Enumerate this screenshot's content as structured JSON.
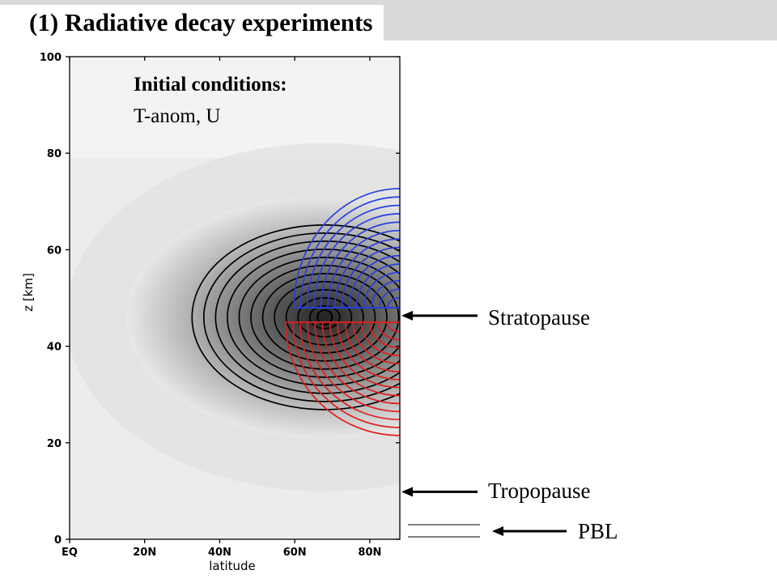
{
  "title": "(1) Radiative decay experiments",
  "initial_conditions": {
    "heading": "Initial conditions:",
    "fields": "T-anom,  U"
  },
  "annotations": {
    "stratopause": "Stratopause",
    "tropopause": "Tropopause",
    "pbl": "PBL"
  },
  "colors": {
    "title_bar": "#d9d9d9",
    "temperature_contours": "#000000",
    "wind_positive": "#2a3fe0",
    "wind_negative": "#e01e1e"
  },
  "chart_data": {
    "type": "contour",
    "xlabel": "latitude",
    "ylabel": "z [km]",
    "xlim": [
      0,
      88
    ],
    "ylim": [
      0,
      100
    ],
    "xticks": [
      0,
      20,
      40,
      60,
      80
    ],
    "xtick_labels": [
      "EQ",
      "20N",
      "40N",
      "60N",
      "80N"
    ],
    "yticks": [
      0,
      20,
      40,
      60,
      80,
      100
    ],
    "ytick_labels": [
      "0",
      "20",
      "40",
      "60",
      "80",
      "100"
    ],
    "shading": "grey filled temperature anomaly, maximum near 70N, 46 km",
    "temperature_anomaly_center": {
      "lat": 68,
      "z": 46
    },
    "wind_positive_center": {
      "lat": 88,
      "z": 48
    },
    "wind_negative_center": {
      "lat": 88,
      "z": 45
    },
    "levels": {
      "stratopause_z": 46,
      "tropopause_z": 10,
      "pbl_z": [
        2.5,
        0.5
      ]
    }
  }
}
